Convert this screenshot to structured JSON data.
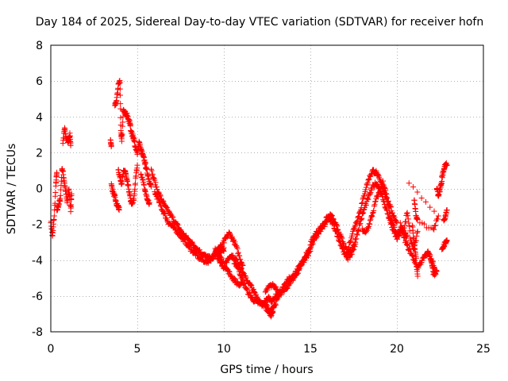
{
  "chart_data": {
    "type": "scatter",
    "title": "Day 184 of 2025, Sidereal Day-to-day VTEC variation (SDTVAR) for receiver hofn",
    "xlabel": "GPS time / hours",
    "ylabel": "SDTVAR / TECUs",
    "xlim": [
      0,
      25
    ],
    "ylim": [
      -8,
      8
    ],
    "xticks": [
      0,
      5,
      10,
      15,
      20,
      25
    ],
    "yticks": [
      -8,
      -6,
      -4,
      -2,
      0,
      2,
      4,
      6,
      8
    ],
    "xtick_labels": [
      "0",
      "5",
      "10",
      "15",
      "20",
      "25"
    ],
    "ytick_labels": [
      "-8",
      "-6",
      "-4",
      "-2",
      "0",
      "2",
      "4",
      "6",
      "8"
    ],
    "grid": true,
    "marker": "+",
    "marker_color": "#ff0000",
    "series": [
      {
        "name": "hofn",
        "segments": [
          {
            "x": [
              0.0,
              0.1,
              0.2,
              0.3,
              0.35
            ],
            "y": [
              -1.8,
              -2.7,
              -1.5,
              0.3,
              0.9
            ]
          },
          {
            "x": [
              0.35,
              0.45,
              0.55,
              0.65,
              0.75,
              0.85,
              0.95,
              1.05,
              1.15,
              1.2
            ],
            "y": [
              -1.3,
              -0.9,
              -0.6,
              1.2,
              0.6,
              -0.1,
              -0.8,
              0.0,
              -1.2,
              -0.3
            ]
          },
          {
            "x": [
              0.7,
              0.8,
              0.9,
              1.0,
              1.1,
              1.15
            ],
            "y": [
              2.6,
              3.3,
              2.8,
              2.6,
              3.0,
              2.4
            ]
          },
          {
            "x": [
              3.45,
              3.5
            ],
            "y": [
              2.7,
              2.4
            ]
          },
          {
            "x": [
              3.5,
              3.6,
              3.7,
              3.8,
              3.9,
              3.95
            ],
            "y": [
              0.2,
              -0.2,
              -0.5,
              -0.9,
              -1.0,
              -1.2
            ]
          },
          {
            "x": [
              3.7,
              3.8,
              3.9,
              4.0,
              4.05,
              4.1,
              4.2,
              4.3,
              4.4,
              4.5,
              4.6
            ],
            "y": [
              4.6,
              4.9,
              5.8,
              6.0,
              3.2,
              2.6,
              4.5,
              4.2,
              4.1,
              3.8,
              3.6
            ]
          },
          {
            "x": [
              3.9,
              4.0,
              4.1,
              4.2,
              4.3,
              4.4,
              4.5,
              4.6,
              4.7,
              4.8,
              4.9,
              5.0
            ],
            "y": [
              1.1,
              0.6,
              0.3,
              0.9,
              1.0,
              0.4,
              0.0,
              -0.6,
              -0.9,
              -0.6,
              0.5,
              1.3
            ]
          },
          {
            "x": [
              4.6,
              4.7,
              4.8,
              4.9,
              5.0,
              5.1,
              5.2,
              5.3,
              5.4,
              5.5,
              5.6,
              5.7,
              5.8
            ],
            "y": [
              3.4,
              3.0,
              2.8,
              2.2,
              2.0,
              2.6,
              2.2,
              1.9,
              1.6,
              1.2,
              0.8,
              0.4,
              0.1
            ]
          },
          {
            "x": [
              5.2,
              5.35,
              5.5,
              5.6,
              5.7
            ],
            "y": [
              0.8,
              0.3,
              -0.3,
              -0.6,
              -0.8
            ]
          },
          {
            "x": [
              5.8,
              6.0,
              6.2,
              6.4,
              6.6,
              6.8,
              7.0,
              7.2,
              7.4,
              7.6,
              7.8,
              8.0,
              8.2,
              8.4,
              8.6,
              8.8,
              9.0,
              9.2,
              9.4,
              9.6,
              9.8,
              10.0
            ],
            "y": [
              1.0,
              0.4,
              -0.2,
              -0.6,
              -1.0,
              -1.3,
              -1.6,
              -1.9,
              -2.2,
              -2.5,
              -2.7,
              -2.9,
              -3.1,
              -3.3,
              -3.5,
              -3.7,
              -3.8,
              -3.9,
              -3.8,
              -3.6,
              -3.5,
              -3.5
            ]
          },
          {
            "x": [
              6.0,
              6.2,
              6.4,
              6.6,
              6.8,
              7.0,
              7.2,
              7.4,
              7.6,
              7.8,
              8.0,
              8.2,
              8.4,
              8.6,
              8.8,
              9.0,
              9.2,
              9.4,
              9.6,
              9.8,
              10.0
            ],
            "y": [
              -0.2,
              -0.6,
              -1.1,
              -1.5,
              -1.9,
              -2.1,
              -2.3,
              -2.5,
              -2.8,
              -3.0,
              -3.3,
              -3.5,
              -3.7,
              -3.9,
              -4.0,
              -4.1,
              -4.0,
              -3.8,
              -3.6,
              -3.4,
              -3.3
            ]
          },
          {
            "x": [
              9.5,
              9.7,
              9.9,
              10.1,
              10.3,
              10.5,
              10.7,
              10.9,
              11.1
            ],
            "y": [
              -3.6,
              -3.3,
              -3.2,
              -2.8,
              -2.5,
              -2.8,
              -3.2,
              -3.8,
              -4.3
            ]
          },
          {
            "x": [
              9.6,
              9.8,
              10.0,
              10.2,
              10.4,
              10.6,
              10.8,
              11.0,
              11.2,
              11.4,
              11.6,
              11.8,
              12.0,
              12.2,
              12.4,
              12.6,
              12.8,
              13.0
            ],
            "y": [
              -3.8,
              -4.1,
              -4.4,
              -4.0,
              -3.7,
              -3.9,
              -4.1,
              -4.5,
              -4.9,
              -5.2,
              -5.5,
              -5.9,
              -6.2,
              -6.4,
              -6.5,
              -6.7,
              -6.8,
              -6.5
            ]
          },
          {
            "x": [
              9.5,
              9.7,
              9.9,
              10.1,
              10.3,
              10.5,
              10.7,
              10.9,
              11.1
            ],
            "y": [
              -3.4,
              -3.7,
              -4.0,
              -4.4,
              -4.7,
              -5.0,
              -5.2,
              -5.4,
              -5.3
            ]
          },
          {
            "x": [
              10.6,
              10.8,
              11.0,
              11.2,
              11.4,
              11.6,
              11.8,
              12.0,
              12.2,
              12.4,
              12.6,
              12.8,
              13.0,
              13.2
            ],
            "y": [
              -4.1,
              -4.4,
              -4.9,
              -5.4,
              -5.8,
              -6.1,
              -6.3,
              -6.4,
              -6.5,
              -6.3,
              -6.1,
              -6.3,
              -6.0,
              -5.8
            ]
          },
          {
            "x": [
              12.3,
              12.5,
              12.7,
              12.8,
              12.9
            ],
            "y": [
              -6.4,
              -6.8,
              -7.1,
              -6.9,
              -6.6
            ]
          },
          {
            "x": [
              12.4,
              12.6,
              12.8,
              13.0,
              13.2,
              13.4,
              13.6,
              13.8,
              14.0,
              14.2,
              14.4,
              14.6,
              14.8
            ],
            "y": [
              -5.8,
              -5.5,
              -5.4,
              -5.5,
              -5.8,
              -5.6,
              -5.3,
              -5.0,
              -5.1,
              -4.8,
              -4.4,
              -4.0,
              -3.7
            ]
          },
          {
            "x": [
              13.0,
              13.2,
              13.4,
              13.6,
              13.8,
              14.0,
              14.2,
              14.4,
              14.6,
              14.8,
              15.0
            ],
            "y": [
              -6.2,
              -6.0,
              -5.7,
              -5.6,
              -5.3,
              -4.9,
              -4.6,
              -4.3,
              -4.1,
              -3.8,
              -3.5
            ]
          },
          {
            "x": [
              14.6,
              14.8,
              15.0,
              15.2,
              15.4,
              15.6,
              15.8,
              16.0,
              16.2,
              16.4,
              16.6,
              16.8,
              17.0,
              17.2,
              17.4,
              17.6
            ],
            "y": [
              -4.0,
              -3.6,
              -3.3,
              -2.9,
              -2.6,
              -2.3,
              -2.1,
              -1.7,
              -1.8,
              -2.2,
              -2.7,
              -3.2,
              -3.7,
              -3.9,
              -3.6,
              -3.1
            ]
          },
          {
            "x": [
              15.0,
              15.2,
              15.4,
              15.6,
              15.8,
              16.0,
              16.2,
              16.4,
              16.6,
              16.8,
              17.0,
              17.2,
              17.4,
              17.6
            ],
            "y": [
              -3.1,
              -2.7,
              -2.4,
              -2.2,
              -1.9,
              -1.6,
              -1.5,
              -1.9,
              -2.3,
              -2.8,
              -3.3,
              -3.6,
              -3.4,
              -3.0
            ]
          },
          {
            "x": [
              17.2,
              17.4,
              17.6,
              17.8,
              18.0,
              18.2,
              18.4,
              18.6,
              18.8,
              19.0,
              19.2,
              19.4,
              19.6,
              19.8,
              20.0
            ],
            "y": [
              -3.3,
              -2.6,
              -2.0,
              -1.5,
              -0.8,
              0.0,
              0.6,
              1.0,
              0.9,
              0.5,
              0.0,
              -0.5,
              -1.0,
              -1.5,
              -1.9
            ]
          },
          {
            "x": [
              17.6,
              17.8,
              18.0,
              18.2,
              18.4,
              18.6,
              18.8,
              19.0,
              19.2,
              19.4,
              19.6,
              19.8,
              20.0,
              20.2
            ],
            "y": [
              -2.9,
              -2.2,
              -1.5,
              -0.9,
              -0.4,
              0.1,
              0.3,
              0.0,
              -0.6,
              -1.2,
              -1.8,
              -2.4,
              -2.8,
              -2.5
            ]
          },
          {
            "x": [
              18.0,
              18.2,
              18.4,
              18.6,
              18.8,
              19.0,
              19.2,
              19.4,
              19.6,
              19.8,
              20.0,
              20.2,
              20.4,
              20.6
            ],
            "y": [
              -2.3,
              -2.5,
              -2.0,
              -1.4,
              -0.6,
              -0.2,
              0.4,
              -0.4,
              -1.5,
              -2.1,
              -2.6,
              -2.3,
              -2.5,
              -2.6
            ]
          },
          {
            "x": [
              20.2,
              20.4,
              20.6,
              20.8,
              21.0,
              21.2
            ],
            "y": [
              -2.0,
              -2.4,
              -1.3,
              -2.9,
              -3.4,
              -2.4
            ]
          },
          {
            "x": [
              20.4,
              20.6,
              20.8,
              21.0,
              21.2,
              21.4,
              21.6,
              21.8,
              22.0,
              22.2
            ],
            "y": [
              -2.7,
              -3.2,
              -3.6,
              -4.0,
              -4.4,
              -4.1,
              -3.8,
              -3.6,
              -3.9,
              -4.5
            ]
          },
          {
            "x": [
              20.9,
              21.0,
              21.1,
              21.2
            ],
            "y": [
              -2.1,
              -3.1,
              -3.8,
              -4.9
            ]
          },
          {
            "x": [
              21.8,
              22.0,
              22.1,
              22.2,
              22.3
            ],
            "y": [
              -3.5,
              -4.1,
              -4.7,
              -4.8,
              -4.6
            ]
          },
          {
            "x": [
              21.0,
              21.1,
              21.2,
              22.1,
              22.4,
              20.7
            ],
            "y": [
              -0.6,
              -1.5,
              -1.8,
              -2.3,
              -1.6,
              0.3
            ]
          },
          {
            "x": [
              22.3,
              22.4,
              22.5,
              22.6
            ],
            "y": [
              0.0,
              -0.4,
              0.0,
              0.4
            ]
          },
          {
            "x": [
              22.6,
              22.7,
              22.8,
              22.9
            ],
            "y": [
              0.6,
              1.0,
              1.4,
              1.3
            ]
          },
          {
            "x": [
              22.6,
              22.7,
              22.8,
              22.9
            ],
            "y": [
              -3.5,
              -3.2,
              -3.0,
              -2.9
            ]
          },
          {
            "x": [
              22.7,
              22.8,
              22.9
            ],
            "y": [
              -1.8,
              -1.6,
              -1.2
            ]
          }
        ]
      }
    ]
  }
}
